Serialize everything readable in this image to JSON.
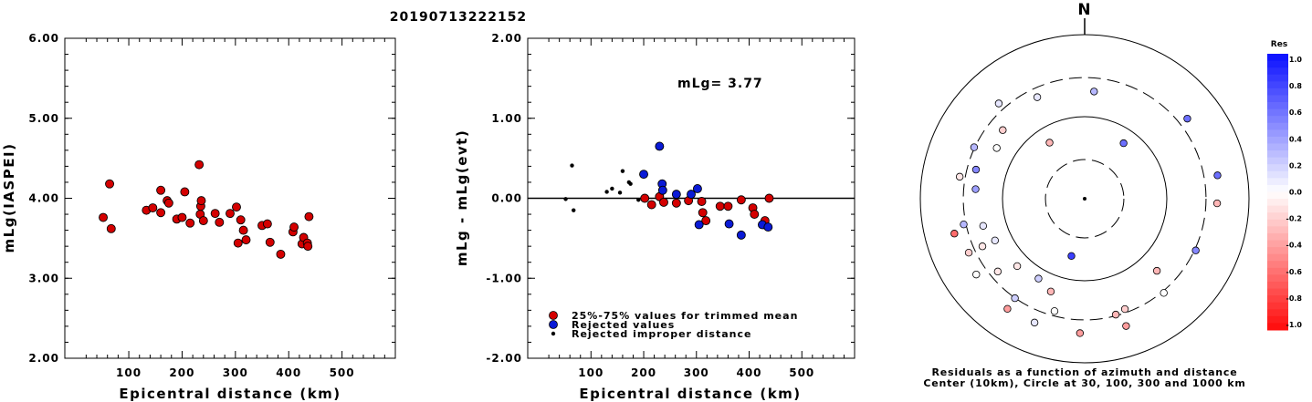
{
  "title": "20190713222152",
  "colors": {
    "primary": "#d40000",
    "rejected": "#0a1ad6",
    "improper": "#000000"
  },
  "chart_data": [
    {
      "type": "scatter",
      "xlabel": "Epicentral distance (km)",
      "ylabel": "mLg(IASPEI)",
      "xlim": [
        -20,
        600
      ],
      "ylim": [
        2.0,
        6.0
      ],
      "xticks": [
        100,
        200,
        300,
        400,
        500
      ],
      "xtick_labels": [
        "100",
        "200",
        "300",
        "400",
        "500"
      ],
      "yticks": [
        2.0,
        3.0,
        4.0,
        5.0,
        6.0
      ],
      "ytick_labels": [
        "2.00",
        "3.00",
        "4.00",
        "5.00",
        "6.00"
      ],
      "series": [
        {
          "points": [
            [
              52,
              3.76
            ],
            [
              64,
              4.18
            ],
            [
              67,
              3.62
            ],
            [
              133,
              3.85
            ],
            [
              145,
              3.88
            ],
            [
              160,
              4.1
            ],
            [
              160,
              3.82
            ],
            [
              172,
              3.97
            ],
            [
              175,
              3.94
            ],
            [
              190,
              3.74
            ],
            [
              200,
              3.76
            ],
            [
              205,
              4.08
            ],
            [
              215,
              3.69
            ],
            [
              232,
              4.42
            ],
            [
              234,
              3.8
            ],
            [
              235,
              3.9
            ],
            [
              236,
              3.97
            ],
            [
              240,
              3.72
            ],
            [
              262,
              3.81
            ],
            [
              270,
              3.7
            ],
            [
              290,
              3.81
            ],
            [
              302,
              3.89
            ],
            [
              305,
              3.44
            ],
            [
              310,
              3.73
            ],
            [
              315,
              3.6
            ],
            [
              320,
              3.48
            ],
            [
              350,
              3.66
            ],
            [
              360,
              3.68
            ],
            [
              365,
              3.45
            ],
            [
              385,
              3.3
            ],
            [
              408,
              3.58
            ],
            [
              410,
              3.64
            ],
            [
              425,
              3.43
            ],
            [
              428,
              3.51
            ],
            [
              435,
              3.44
            ],
            [
              436,
              3.4
            ],
            [
              438,
              3.77
            ]
          ]
        }
      ]
    },
    {
      "type": "scatter",
      "xlabel": "Epicentral distance (km)",
      "ylabel": "mLg - mLg(evt)",
      "annotation": "mLg= 3.77",
      "xlim": [
        -20,
        600
      ],
      "ylim": [
        -2.0,
        2.0
      ],
      "reference_line": 0.0,
      "xticks": [
        100,
        200,
        300,
        400,
        500
      ],
      "xtick_labels": [
        "100",
        "200",
        "300",
        "400",
        "500"
      ],
      "yticks": [
        -2.0,
        -1.0,
        0.0,
        1.0,
        2.0
      ],
      "ytick_labels": [
        "-2.00",
        "-1.00",
        "0.00",
        "1.00",
        "2.00"
      ],
      "legend": [
        "25%-75% values for trimmed mean",
        "Rejected values",
        "Rejected improper distance"
      ],
      "series": [
        {
          "name": "25%-75% values for trimmed mean",
          "points": [
            [
              202,
              0.0
            ],
            [
              215,
              -0.08
            ],
            [
              230,
              0.02
            ],
            [
              238,
              -0.05
            ],
            [
              262,
              -0.06
            ],
            [
              285,
              -0.03
            ],
            [
              310,
              -0.04
            ],
            [
              312,
              -0.18
            ],
            [
              318,
              -0.28
            ],
            [
              345,
              -0.1
            ],
            [
              360,
              -0.1
            ],
            [
              385,
              -0.02
            ],
            [
              407,
              -0.12
            ],
            [
              410,
              -0.2
            ],
            [
              428,
              -0.33
            ],
            [
              430,
              -0.28
            ],
            [
              438,
              0.0
            ]
          ]
        },
        {
          "name": "Rejected values",
          "points": [
            [
              200,
              0.3
            ],
            [
              230,
              0.65
            ],
            [
              235,
              0.18
            ],
            [
              236,
              0.1
            ],
            [
              262,
              0.05
            ],
            [
              290,
              0.05
            ],
            [
              302,
              0.12
            ],
            [
              305,
              -0.33
            ],
            [
              362,
              -0.32
            ],
            [
              385,
              -0.46
            ],
            [
              425,
              -0.33
            ],
            [
              436,
              -0.36
            ]
          ]
        },
        {
          "name": "Rejected improper distance",
          "points": [
            [
              52,
              -0.01
            ],
            [
              64,
              0.41
            ],
            [
              67,
              -0.15
            ],
            [
              130,
              0.08
            ],
            [
              140,
              0.12
            ],
            [
              155,
              0.07
            ],
            [
              160,
              0.34
            ],
            [
              172,
              0.2
            ],
            [
              175,
              0.18
            ],
            [
              190,
              -0.02
            ]
          ]
        }
      ]
    },
    {
      "type": "scatter",
      "subtype": "polar",
      "north_label": "N",
      "caption_line1": "Residuals as a function of azimuth and distance",
      "caption_line2": "Center (10km), Circle at 30, 100, 300 and 1000 km",
      "rings_km": [
        30,
        100,
        300,
        1000
      ],
      "colorbar": {
        "title": "Res",
        "labels": [
          "1.0",
          "0.8",
          "0.6",
          "0.4",
          "0.2",
          "0.0",
          "-0.2",
          "-0.4",
          "-0.6",
          "-0.8",
          "-1.0"
        ]
      },
      "points_az_dist_res": [
        [
          193,
          52,
          0.8
        ],
        [
          328,
          64,
          -0.3
        ],
        [
          35,
          67,
          0.6
        ],
        [
          210,
          133,
          0.2
        ],
        [
          225,
          145,
          -0.1
        ],
        [
          245,
          160,
          0.1
        ],
        [
          200,
          160,
          -0.3
        ],
        [
          300,
          172,
          0
        ],
        [
          135,
          175,
          -0.3
        ],
        [
          255,
          190,
          0.1
        ],
        [
          310,
          200,
          -0.2
        ],
        [
          5,
          205,
          0.3
        ],
        [
          275,
          215,
          0.4
        ],
        [
          335,
          232,
          0.1
        ],
        [
          285,
          234,
          0.5
        ],
        [
          245,
          236,
          -0.1
        ],
        [
          230,
          240,
          -0.1
        ],
        [
          195,
          262,
          0
        ],
        [
          160,
          270,
          -0.2
        ],
        [
          165,
          290,
          -0.3
        ],
        [
          215,
          302,
          0.2
        ],
        [
          295,
          305,
          0.3
        ],
        [
          115,
          310,
          0.5
        ],
        [
          140,
          315,
          0
        ],
        [
          258,
          320,
          0.3
        ],
        [
          280,
          350,
          -0.1
        ],
        [
          245,
          360,
          -0.2
        ],
        [
          318,
          365,
          0.1
        ],
        [
          52,
          385,
          0.6
        ],
        [
          235,
          408,
          0
        ],
        [
          92,
          410,
          -0.3
        ],
        [
          202,
          425,
          0.1
        ],
        [
          162,
          428,
          -0.4
        ],
        [
          215,
          435,
          -0.4
        ],
        [
          182,
          436,
          -0.4
        ],
        [
          80,
          438,
          0.6
        ],
        [
          255,
          438,
          -0.6
        ]
      ]
    }
  ]
}
